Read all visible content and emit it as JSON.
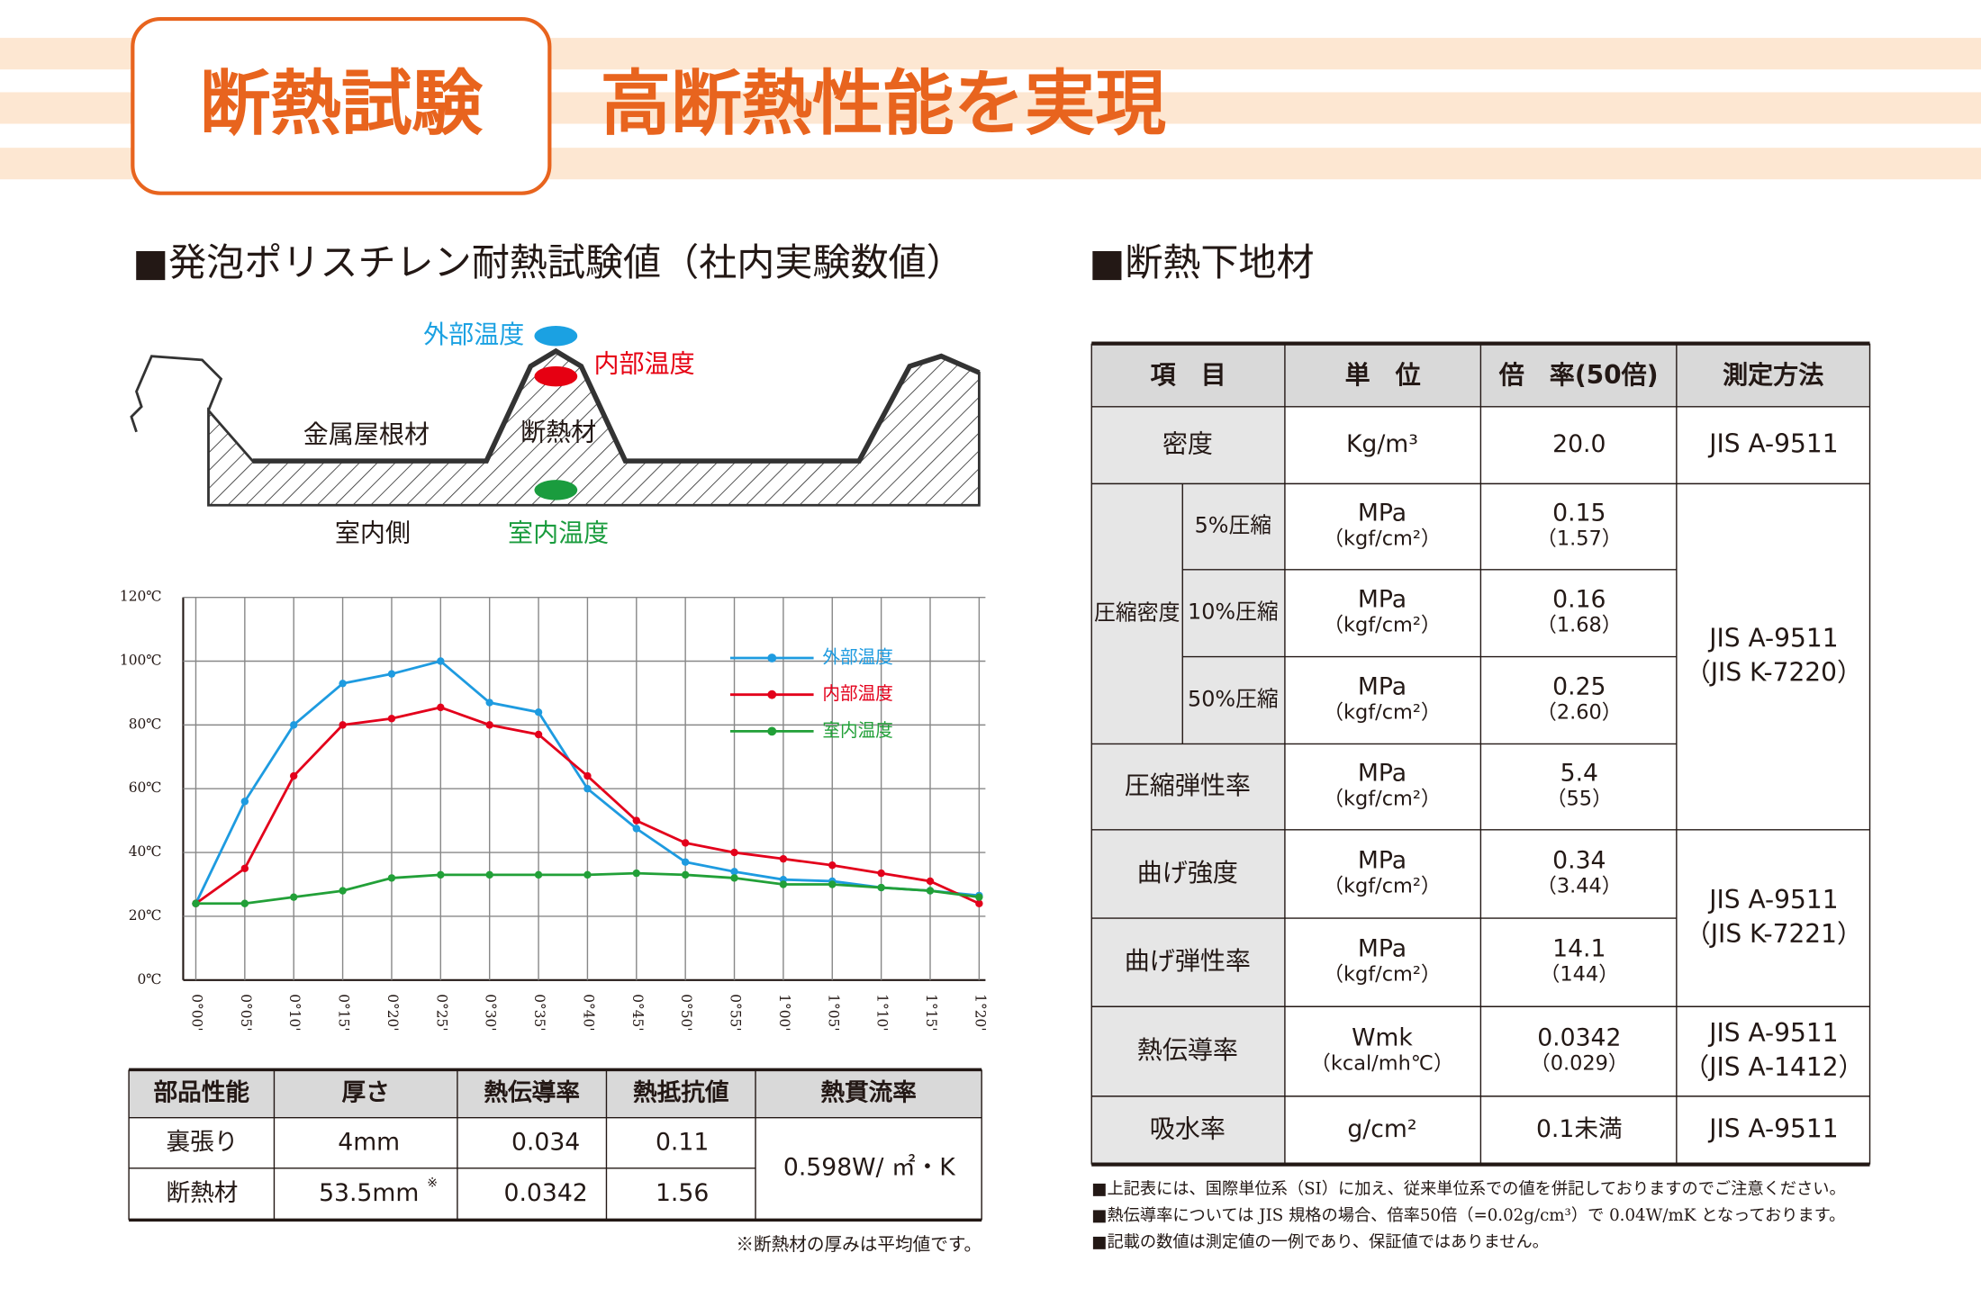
{
  "header": {
    "badge": "断熱試験",
    "headline": "高断熱性能を実現"
  },
  "left_section": {
    "title": "■発泡ポリスチレン耐熱試験値（社内実験数値）",
    "diagram": {
      "outside": "外部温度",
      "inside": "内部温度",
      "roof": "金属屋根材",
      "insulation": "断熱材",
      "room_side": "室内側",
      "room_temp": "室内温度"
    }
  },
  "chart_data": {
    "type": "line",
    "categories": [
      "0°00'",
      "0°05'",
      "0°10'",
      "0°15'",
      "0°20'",
      "0°25'",
      "0°30'",
      "0°35'",
      "0°40'",
      "0°45'",
      "0°50'",
      "0°55'",
      "1°00'",
      "1°05'",
      "1°10'",
      "1°15'",
      "1°20'"
    ],
    "series": [
      {
        "name": "外部温度",
        "color": "#1e9be0",
        "values": [
          24,
          56,
          80,
          93,
          96,
          100,
          87,
          84,
          60,
          47.5,
          37,
          34,
          31.5,
          31,
          29,
          28,
          26.5
        ]
      },
      {
        "name": "内部温度",
        "color": "#e3001b",
        "values": [
          24,
          35,
          64,
          80,
          82,
          85.5,
          80,
          77,
          64,
          50,
          43,
          40,
          38,
          36,
          33.5,
          31,
          24
        ]
      },
      {
        "name": "室内温度",
        "color": "#22a038",
        "values": [
          24,
          24,
          26,
          28,
          32,
          33,
          33,
          33,
          33,
          33.5,
          33,
          32,
          30,
          30,
          29,
          28,
          26
        ]
      }
    ],
    "ylim": [
      0,
      120
    ],
    "yticks": [
      {
        "value": 0,
        "label": "0℃"
      },
      {
        "value": 20,
        "label": "20℃"
      },
      {
        "value": 40,
        "label": "40℃"
      },
      {
        "value": 60,
        "label": "60℃"
      },
      {
        "value": 80,
        "label": "80℃"
      },
      {
        "value": 100,
        "label": "100℃"
      },
      {
        "value": 120,
        "label": "120℃"
      }
    ],
    "grid": true,
    "legend": "upper right"
  },
  "performance_table": {
    "headers": [
      "部品性能",
      "厚さ",
      "熱伝導率",
      "熱抵抗値",
      "熱貫流率"
    ],
    "rows": [
      [
        "裏張り",
        "4mm",
        "0.034",
        "0.11"
      ],
      [
        "断熱材",
        "53.5mm",
        "0.0342",
        "1.56"
      ]
    ],
    "thickness_mark": "※",
    "transmittance": "0.598W/ ㎡・K",
    "note": "※断熱材の厚みは平均値です。"
  },
  "right_section": {
    "title": "■断熱下地材",
    "table": {
      "headers": [
        "項　目",
        "単　位",
        "倍　率(50倍)",
        "測定方法"
      ],
      "group_label": "圧縮密度",
      "rows": [
        {
          "item": "密度",
          "unit": [
            "Kg/m³"
          ],
          "value": [
            "20.0"
          ]
        },
        {
          "sub": "5%圧縮",
          "unit": [
            "MPa",
            "（kgf/cm²）"
          ],
          "value": [
            "0.15",
            "（1.57）"
          ]
        },
        {
          "sub": "10%圧縮",
          "unit": [
            "MPa",
            "（kgf/cm²）"
          ],
          "value": [
            "0.16",
            "（1.68）"
          ]
        },
        {
          "sub": "50%圧縮",
          "unit": [
            "MPa",
            "（kgf/cm²）"
          ],
          "value": [
            "0.25",
            "（2.60）"
          ]
        },
        {
          "item": "圧縮弾性率",
          "unit": [
            "MPa",
            "（kgf/cm²）"
          ],
          "value": [
            "5.4",
            "（55）"
          ]
        },
        {
          "item": "曲げ強度",
          "unit": [
            "MPa",
            "（kgf/cm²）"
          ],
          "value": [
            "0.34",
            "（3.44）"
          ]
        },
        {
          "item": "曲げ弾性率",
          "unit": [
            "MPa",
            "（kgf/cm²）"
          ],
          "value": [
            "14.1",
            "（144）"
          ]
        },
        {
          "item": "熱伝導率",
          "unit": [
            "Wmk",
            "（kcal/mh℃）"
          ],
          "value": [
            "0.0342",
            "（0.029）"
          ]
        },
        {
          "item": "吸水率",
          "unit": [
            "g/cm²"
          ],
          "value": [
            "0.1未満"
          ]
        }
      ],
      "methods": [
        [
          "JIS A-9511"
        ],
        [
          "JIS A-9511",
          "（JIS K-7220）"
        ],
        [
          "JIS A-9511",
          "（JIS K-7221）"
        ],
        [
          "JIS A-9511",
          "（JIS A-1412）"
        ],
        [
          "JIS A-9511"
        ]
      ]
    },
    "notes": [
      "■上記表には、国際単位系（SI）に加え、従来単位系での値を併記しておりますのでご注意ください。",
      "■熱伝導率については JIS 規格の場合、倍率50倍（=0.02g/cm³）で 0.04W/mK となっております。",
      "■記載の数値は測定値の一例であり、保証値ではありません。"
    ]
  }
}
